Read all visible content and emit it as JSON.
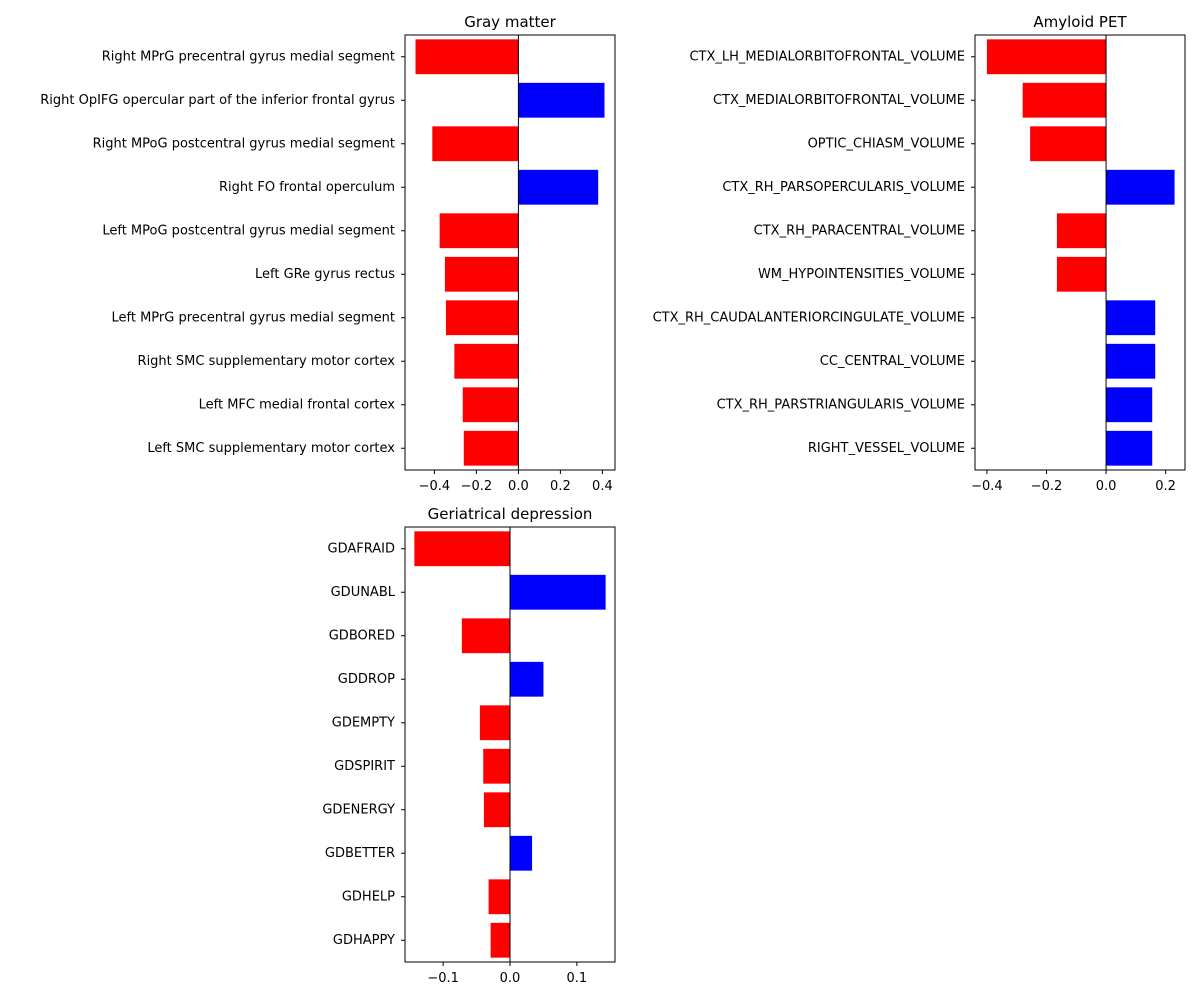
{
  "colors": {
    "negative": "#ff0000",
    "positive": "#0000ff",
    "axis": "#000000"
  },
  "chart_data": [
    {
      "type": "bar",
      "orientation": "horizontal",
      "title": "Gray matter",
      "xlabel": "",
      "ylabel": "",
      "xlim": [
        -0.54,
        0.46
      ],
      "xticks": [
        -0.4,
        -0.2,
        0.0,
        0.2,
        0.4
      ],
      "xtick_labels": [
        "−0.4",
        "−0.2",
        "0.0",
        "0.2",
        "0.4"
      ],
      "categories": [
        "Right MPrG precentral gyrus medial segment",
        "Right OpIFG opercular part of the inferior frontal gyrus",
        "Right MPoG postcentral gyrus medial segment",
        "Right FO frontal operculum",
        "Left MPoG postcentral gyrus medial segment",
        "Left GRe gyrus rectus",
        "Left MPrG precentral gyrus medial segment",
        "Right SMC supplementary motor cortex",
        "Left MFC medial frontal cortex",
        "Left SMC supplementary motor cortex"
      ],
      "values": [
        -0.49,
        0.41,
        -0.41,
        0.38,
        -0.375,
        -0.35,
        -0.345,
        -0.305,
        -0.265,
        -0.26
      ]
    },
    {
      "type": "bar",
      "orientation": "horizontal",
      "title": "Amyloid PET",
      "xlabel": "",
      "ylabel": "",
      "xlim": [
        -0.44,
        0.265
      ],
      "xticks": [
        -0.4,
        -0.2,
        0.0,
        0.2
      ],
      "xtick_labels": [
        "−0.4",
        "−0.2",
        "0.0",
        "0.2"
      ],
      "categories": [
        "CTX_LH_MEDIALORBITOFRONTAL_VOLUME",
        "CTX_MEDIALORBITOFRONTAL_VOLUME",
        "OPTIC_CHIASM_VOLUME",
        "CTX_RH_PARSOPERCULARIS_VOLUME",
        "CTX_RH_PARACENTRAL_VOLUME",
        "WM_HYPOINTENSITIES_VOLUME",
        "CTX_RH_CAUDALANTERIORCINGULATE_VOLUME",
        "CC_CENTRAL_VOLUME",
        "CTX_RH_PARSTRIANGULARIS_VOLUME",
        "RIGHT_VESSEL_VOLUME"
      ],
      "values": [
        -0.4,
        -0.28,
        -0.255,
        0.23,
        -0.165,
        -0.165,
        0.165,
        0.165,
        0.155,
        0.155
      ]
    },
    {
      "type": "bar",
      "orientation": "horizontal",
      "title": "Geriatrical depression",
      "xlabel": "",
      "ylabel": "",
      "xlim": [
        -0.157,
        0.157
      ],
      "xticks": [
        -0.1,
        0.0,
        0.1
      ],
      "xtick_labels": [
        "−0.1",
        "0.0",
        "0.1"
      ],
      "categories": [
        "GDAFRAID",
        "GDUNABL",
        "GDBORED",
        "GDDROP",
        "GDEMPTY",
        "GDSPIRIT",
        "GDENERGY",
        "GDBETTER",
        "GDHELP",
        "GDHAPPY"
      ],
      "values": [
        -0.143,
        0.143,
        -0.072,
        0.05,
        -0.045,
        -0.04,
        -0.039,
        0.033,
        -0.032,
        -0.029
      ]
    }
  ]
}
